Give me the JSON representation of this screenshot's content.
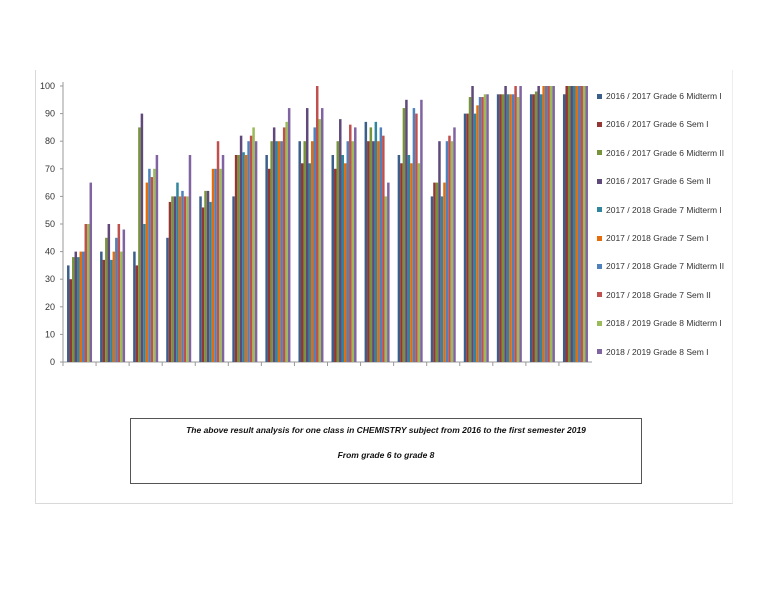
{
  "chart_data": {
    "type": "bar",
    "title": "",
    "xlabel": "",
    "ylabel": "",
    "ylim": [
      0,
      100
    ],
    "yticks": [
      0,
      10,
      20,
      30,
      40,
      50,
      60,
      70,
      80,
      90,
      100
    ],
    "grid": false,
    "legend_position": "right",
    "series": [
      {
        "name": "2016 / 2017 Grade 6  Midterm I",
        "color": "#3b5f8a",
        "values": [
          35,
          40,
          40,
          45,
          60,
          60,
          75,
          80,
          75,
          87,
          75,
          60,
          90,
          97,
          97,
          97
        ]
      },
      {
        "name": "2016 / 2017 Grade 6  Sem I",
        "color": "#943634",
        "values": [
          30,
          37,
          35,
          58,
          56,
          75,
          70,
          72,
          70,
          80,
          72,
          65,
          90,
          97,
          97,
          100
        ]
      },
      {
        "name": "2016 / 2017 Grade 6  Midterm II",
        "color": "#77933c",
        "values": [
          38,
          45,
          85,
          60,
          62,
          75,
          80,
          80,
          80,
          85,
          92,
          65,
          96,
          97,
          98,
          100
        ]
      },
      {
        "name": "2016 / 2017 Grade 6  Sem II",
        "color": "#5f497a",
        "values": [
          40,
          50,
          90,
          60,
          62,
          82,
          85,
          92,
          88,
          80,
          95,
          80,
          100,
          100,
          100,
          100
        ]
      },
      {
        "name": "2017 / 2018 Grade 7  Midterm I",
        "color": "#31859c",
        "values": [
          38,
          37,
          50,
          65,
          58,
          76,
          80,
          72,
          75,
          87,
          75,
          60,
          90,
          97,
          97,
          100
        ]
      },
      {
        "name": "2017 / 2018 Grade 7  Sem I",
        "color": "#e46c0a",
        "values": [
          40,
          40,
          65,
          60,
          70,
          75,
          80,
          80,
          72,
          80,
          72,
          65,
          93,
          97,
          100,
          100
        ]
      },
      {
        "name": "2017 / 2018 Grade 7  Midterm II",
        "color": "#4f81bd",
        "values": [
          40,
          45,
          70,
          62,
          70,
          80,
          80,
          85,
          80,
          85,
          92,
          80,
          96,
          97,
          100,
          100
        ]
      },
      {
        "name": "2017 / 2018 Grade 7  Sem II",
        "color": "#c0504d",
        "values": [
          50,
          50,
          67,
          60,
          80,
          82,
          85,
          100,
          86,
          82,
          90,
          82,
          96,
          100,
          100,
          100
        ]
      },
      {
        "name": "2018 / 2019 Grade 8 Midterm I",
        "color": "#9bbb59",
        "values": [
          50,
          40,
          70,
          60,
          70,
          85,
          87,
          88,
          80,
          60,
          72,
          80,
          97,
          96,
          100,
          100
        ]
      },
      {
        "name": "2018 / 2019 Grade 8 Sem I",
        "color": "#8064a2",
        "values": [
          65,
          48,
          75,
          75,
          75,
          80,
          92,
          92,
          85,
          65,
          95,
          85,
          97,
          100,
          100,
          100
        ]
      }
    ]
  },
  "caption": {
    "line1": "The above result analysis for one class in CHEMISTRY subject from 2016 to the first semester 2019",
    "line2": "From grade 6 to grade 8"
  }
}
